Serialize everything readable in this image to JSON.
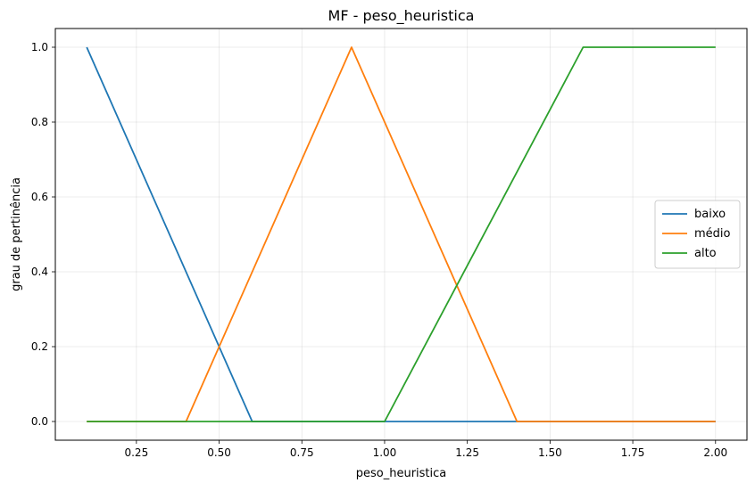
{
  "chart_data": {
    "type": "line",
    "title": "MF - peso_heuristica",
    "xlabel": "peso_heuristica",
    "ylabel": "grau de pertinência",
    "xlim": [
      0.005,
      2.095
    ],
    "ylim": [
      -0.05,
      1.05
    ],
    "xticks": [
      0.25,
      0.5,
      0.75,
      1.0,
      1.25,
      1.5,
      1.75,
      2.0
    ],
    "xtick_labels": [
      "0.25",
      "0.50",
      "0.75",
      "1.00",
      "1.25",
      "1.50",
      "1.75",
      "2.00"
    ],
    "yticks": [
      0.0,
      0.2,
      0.4,
      0.6,
      0.8,
      1.0
    ],
    "ytick_labels": [
      "0.0",
      "0.2",
      "0.4",
      "0.6",
      "0.8",
      "1.0"
    ],
    "grid": true,
    "legend_position": "center right",
    "series": [
      {
        "name": "baixo",
        "color": "#1f77b4",
        "x": [
          0.1,
          0.6,
          2.0
        ],
        "y": [
          1.0,
          0.0,
          0.0
        ]
      },
      {
        "name": "médio",
        "color": "#ff7f0e",
        "x": [
          0.1,
          0.4,
          0.9,
          1.4,
          2.0
        ],
        "y": [
          0.0,
          0.0,
          1.0,
          0.0,
          0.0
        ]
      },
      {
        "name": "alto",
        "color": "#2ca02c",
        "x": [
          0.1,
          1.0,
          1.6,
          2.0
        ],
        "y": [
          0.0,
          0.0,
          1.0,
          1.0
        ]
      }
    ]
  }
}
